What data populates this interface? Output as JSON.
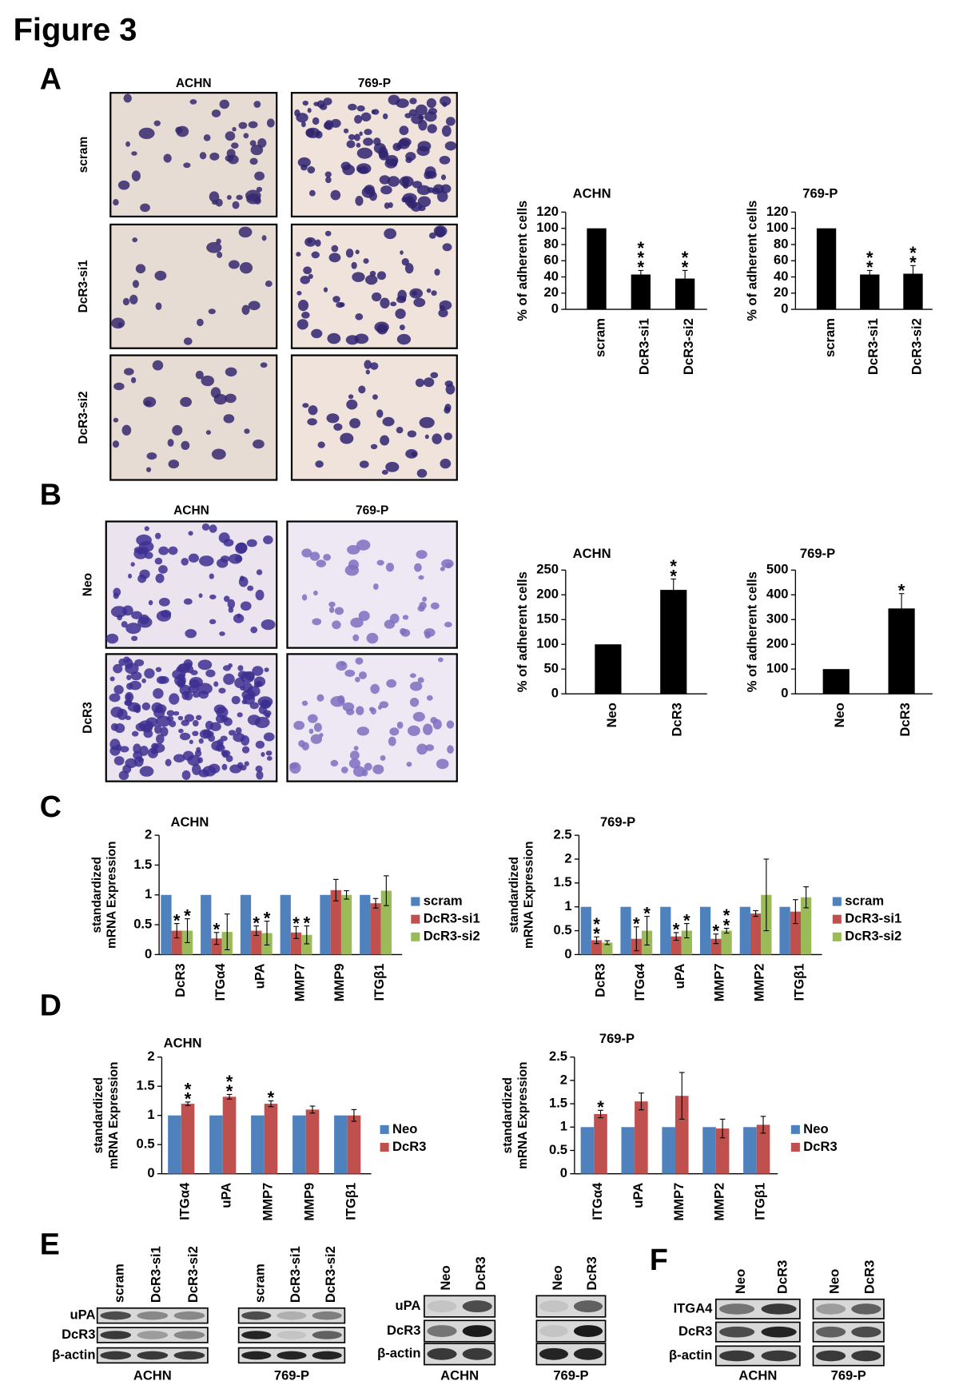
{
  "figure_title": "Figure 3",
  "panel_labels": [
    "A",
    "B",
    "C",
    "D",
    "E",
    "F"
  ],
  "micrographs": [
    {
      "columns": [
        "ACHN",
        "769-P"
      ],
      "rows": [
        "scram",
        "DcR3-si1",
        "DcR3-si2"
      ]
    },
    {
      "columns": [
        "ACHN",
        "769-P"
      ],
      "rows": [
        "Neo",
        "DcR3"
      ]
    }
  ],
  "chart_data": [
    {
      "type": "bar",
      "title": "ACHN",
      "ylabel": "% of adherent cells",
      "categories": [
        "scram",
        "DcR3-si1",
        "DcR3-si2"
      ],
      "values": [
        100,
        43,
        38
      ],
      "errors": [
        null,
        5,
        10
      ],
      "annotations": [
        null,
        "***",
        "**"
      ],
      "color": "#000000",
      "ylim": [
        0,
        120
      ],
      "yticks": [
        0,
        20,
        40,
        60,
        80,
        100,
        120
      ]
    },
    {
      "type": "bar",
      "title": "769-P",
      "ylabel": "% of adherent cells",
      "categories": [
        "scram",
        "DcR3-si1",
        "DcR3-si2"
      ],
      "values": [
        100,
        43,
        44
      ],
      "errors": [
        null,
        5,
        10
      ],
      "annotations": [
        null,
        "**",
        "**"
      ],
      "color": "#000000",
      "ylim": [
        0,
        120
      ],
      "yticks": [
        0,
        20,
        40,
        60,
        80,
        100,
        120
      ]
    },
    {
      "type": "bar",
      "title": "ACHN",
      "ylabel": "% of adherent cells",
      "categories": [
        "Neo",
        "DcR3"
      ],
      "values": [
        100,
        210
      ],
      "errors": [
        null,
        22
      ],
      "annotations": [
        null,
        "**"
      ],
      "color": "#000000",
      "ylim": [
        0,
        250
      ],
      "yticks": [
        0,
        50,
        100,
        150,
        200,
        250
      ]
    },
    {
      "type": "bar",
      "title": "769-P",
      "ylabel": "% of adherent cells",
      "categories": [
        "Neo",
        "DcR3"
      ],
      "values": [
        100,
        345
      ],
      "errors": [
        null,
        60
      ],
      "annotations": [
        null,
        "*"
      ],
      "color": "#000000",
      "ylim": [
        0,
        500
      ],
      "yticks": [
        0,
        100,
        200,
        300,
        400,
        500
      ]
    },
    {
      "type": "bar",
      "title": "ACHN",
      "ylabel": [
        "standardized",
        "mRNA Expression"
      ],
      "categories": [
        "DcR3",
        "ITGα4",
        "uPA",
        "MMP7",
        "MMP9",
        "ITGβ1"
      ],
      "ylim": [
        0,
        2
      ],
      "yticks": [
        0,
        0.5,
        1,
        1.5,
        2
      ],
      "series": [
        {
          "name": "scram",
          "color": "#4f81bd",
          "values": [
            1,
            1,
            1,
            1,
            1,
            1
          ]
        },
        {
          "name": "DcR3-si1",
          "color": "#c0504d",
          "values": [
            0.4,
            0.27,
            0.4,
            0.37,
            1.08,
            0.86
          ],
          "errors": [
            0.12,
            0.1,
            0.08,
            0.1,
            0.18,
            0.08
          ],
          "annotations": [
            "*",
            "*",
            "*",
            "*",
            null,
            null
          ]
        },
        {
          "name": "DcR3-si2",
          "color": "#9bbb59",
          "values": [
            0.4,
            0.38,
            0.36,
            0.33,
            1.0,
            1.07
          ],
          "errors": [
            0.2,
            0.3,
            0.2,
            0.15,
            0.07,
            0.25
          ],
          "annotations": [
            "*",
            null,
            "*",
            "*",
            null,
            null
          ]
        }
      ]
    },
    {
      "type": "bar",
      "title": "769-P",
      "ylabel": [
        "standardized",
        "mRNA Expression"
      ],
      "categories": [
        "DcR3",
        "ITGα4",
        "uPA",
        "MMP7",
        "MMP2",
        "ITGβ1"
      ],
      "ylim": [
        0,
        2.5
      ],
      "yticks": [
        0,
        0.5,
        1,
        1.5,
        2,
        2.5
      ],
      "series": [
        {
          "name": "scram",
          "color": "#4f81bd",
          "values": [
            1,
            1,
            1,
            1,
            1,
            1
          ]
        },
        {
          "name": "DcR3-si1",
          "color": "#c0504d",
          "values": [
            0.3,
            0.33,
            0.38,
            0.33,
            0.86,
            0.9
          ],
          "errors": [
            0.07,
            0.25,
            0.08,
            0.1,
            0.06,
            0.25
          ],
          "annotations": [
            "**",
            "*",
            "*",
            "*",
            null,
            null
          ]
        },
        {
          "name": "DcR3-si2",
          "color": "#9bbb59",
          "values": [
            0.25,
            0.5,
            0.5,
            0.5,
            1.25,
            1.2
          ],
          "errors": [
            0.04,
            0.3,
            0.15,
            0.05,
            0.75,
            0.22
          ],
          "annotations": [
            null,
            "*",
            "*",
            "**",
            null,
            null
          ]
        }
      ]
    },
    {
      "type": "bar",
      "title": "ACHN",
      "ylabel": [
        "standardized",
        "mRNA Expression"
      ],
      "categories": [
        "ITGα4",
        "uPA",
        "MMP7",
        "MMP9",
        "ITGβ1"
      ],
      "ylim": [
        0,
        2
      ],
      "yticks": [
        0,
        0.5,
        1,
        1.5,
        2
      ],
      "series": [
        {
          "name": "Neo",
          "color": "#4f81bd",
          "values": [
            1,
            1,
            1,
            1,
            1
          ]
        },
        {
          "name": "DcR3",
          "color": "#c0504d",
          "values": [
            1.2,
            1.32,
            1.2,
            1.1,
            1.0
          ],
          "errors": [
            0.03,
            0.04,
            0.05,
            0.06,
            0.1
          ],
          "annotations": [
            "**",
            "**",
            "*",
            null,
            null
          ]
        }
      ]
    },
    {
      "type": "bar",
      "title": "769-P",
      "ylabel": [
        "standardized",
        "mRNA Expression"
      ],
      "categories": [
        "ITGα4",
        "uPA",
        "MMP7",
        "MMP2",
        "ITGβ1"
      ],
      "ylim": [
        0,
        2.5
      ],
      "yticks": [
        0,
        0.5,
        1,
        1.5,
        2,
        2.5
      ],
      "series": [
        {
          "name": "Neo",
          "color": "#4f81bd",
          "values": [
            1,
            1,
            1,
            1,
            1
          ]
        },
        {
          "name": "DcR3",
          "color": "#c0504d",
          "values": [
            1.28,
            1.55,
            1.67,
            0.97,
            1.05
          ],
          "errors": [
            0.08,
            0.18,
            0.5,
            0.2,
            0.18
          ],
          "annotations": [
            "*",
            null,
            null,
            null,
            null
          ]
        }
      ]
    }
  ],
  "blots": [
    {
      "rows": [
        "uPA",
        "DcR3",
        "β-actin"
      ],
      "panes": [
        {
          "lanes": [
            "scram",
            "DcR3-si1",
            "DcR3-si2"
          ],
          "cell_line": "ACHN"
        },
        {
          "lanes": [
            "scram",
            "DcR3-si1",
            "DcR3-si2"
          ],
          "cell_line": "769-P"
        }
      ]
    },
    {
      "rows": [
        "uPA",
        "DcR3",
        "β-actin"
      ],
      "panes": [
        {
          "lanes": [
            "Neo",
            "DcR3"
          ],
          "cell_line": "ACHN"
        },
        {
          "lanes": [
            "Neo",
            "DcR3"
          ],
          "cell_line": "769-P"
        }
      ]
    },
    {
      "rows": [
        "ITGA4",
        "DcR3",
        "β-actin"
      ],
      "panes": [
        {
          "lanes": [
            "Neo",
            "DcR3"
          ],
          "cell_line": "ACHN"
        },
        {
          "lanes": [
            "Neo",
            "DcR3"
          ],
          "cell_line": "769-P"
        }
      ]
    }
  ]
}
